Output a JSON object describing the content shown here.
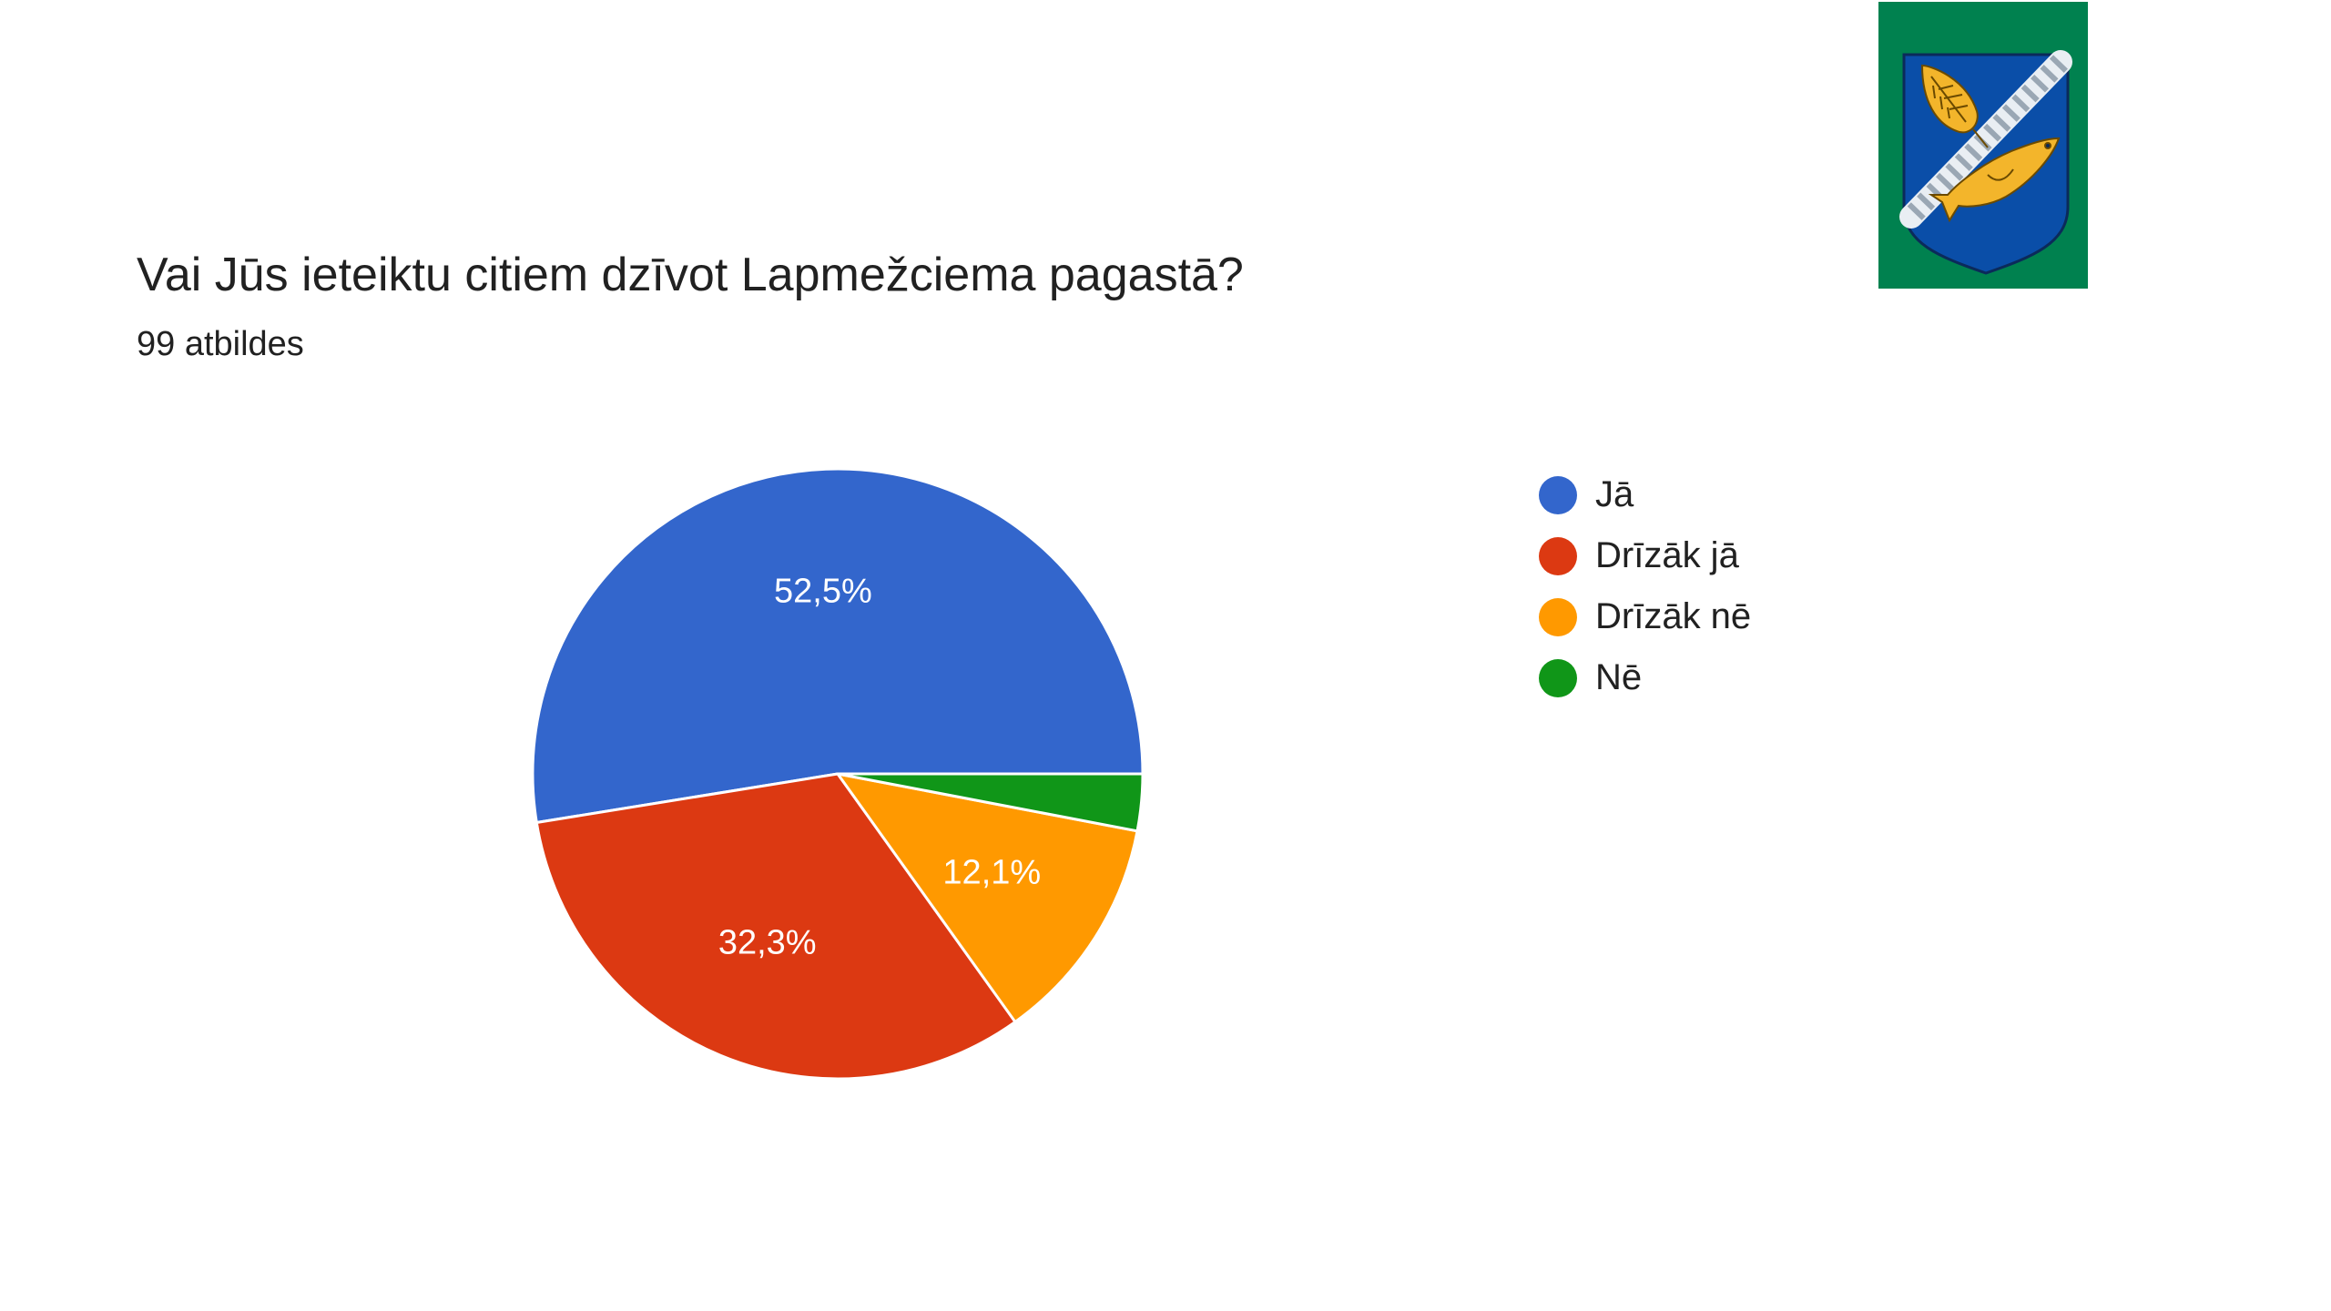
{
  "chart_data": {
    "type": "pie",
    "title": "Vai Jūs ieteiktu citiem dzīvot Lapmežciema pagastā?",
    "subtitle": "99 atbildes",
    "categories": [
      "Jā",
      "Drīzāk jā",
      "Drīzāk nē",
      "Nē"
    ],
    "values": [
      52.5,
      32.3,
      12.1,
      3.0
    ],
    "labels": [
      "52,5%",
      "32,3%",
      "12,1%",
      ""
    ],
    "colors": [
      "#3366cc",
      "#dc3912",
      "#ff9900",
      "#109618"
    ],
    "legend_position": "right",
    "start": "3 o'clock, counter-clockwise"
  },
  "logo": {
    "background_color": "#00814f",
    "shield_color": "#0a4ea8",
    "charge_color": "#f3b52b"
  }
}
